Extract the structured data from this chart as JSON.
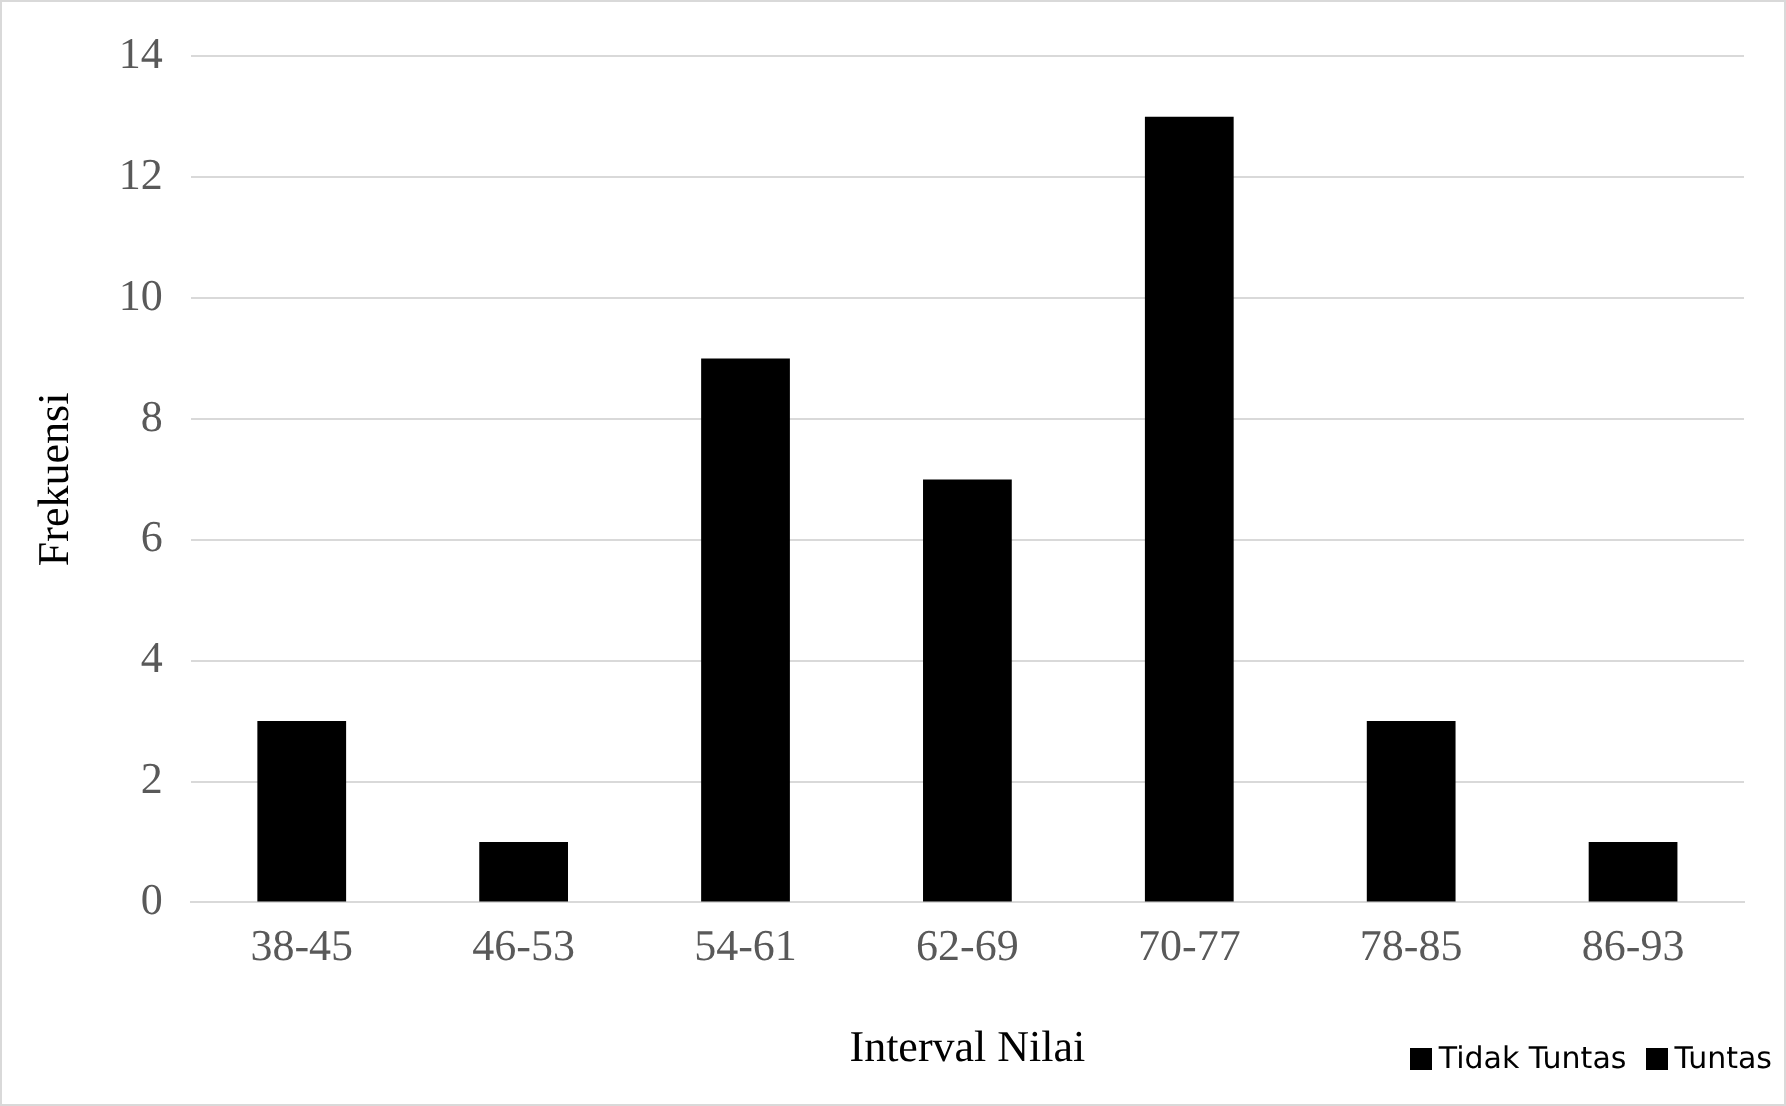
{
  "chart_data": {
    "type": "bar",
    "xlabel": "Interval Nilai",
    "ylabel": "Frekuensi",
    "categories": [
      "38-45",
      "46-53",
      "54-61",
      "62-69",
      "70-77",
      "78-85",
      "86-93"
    ],
    "series": [
      {
        "name": "Tidak Tuntas",
        "color": "#000000",
        "values": [
          3,
          1,
          9,
          7,
          null,
          null,
          null
        ]
      },
      {
        "name": "Tuntas",
        "color": "#000000",
        "values": [
          null,
          null,
          null,
          null,
          13,
          3,
          1
        ]
      }
    ],
    "ylim": [
      0,
      14
    ],
    "yticks": [
      0,
      2,
      4,
      6,
      8,
      10,
      12,
      14
    ],
    "grid": "y",
    "legend": "bottom right"
  }
}
